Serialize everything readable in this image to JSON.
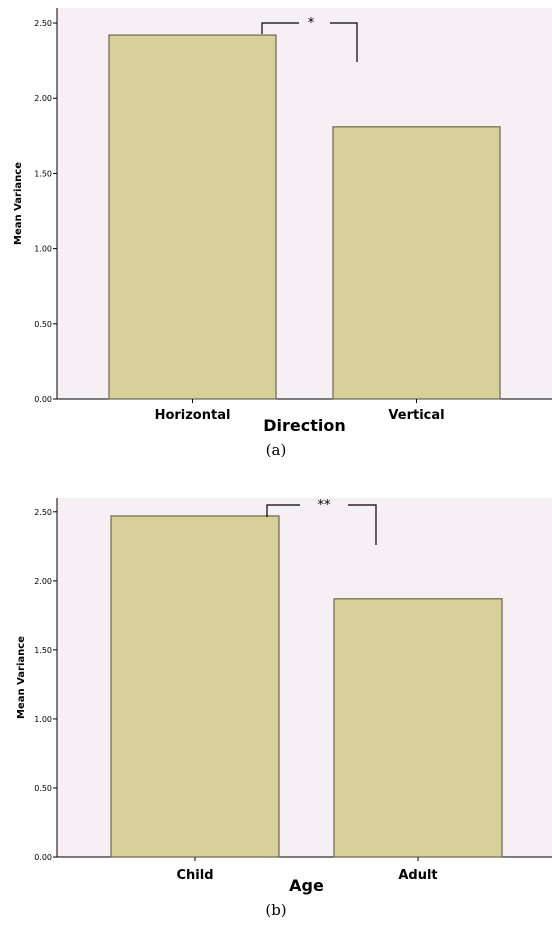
{
  "chart_data": [
    {
      "type": "bar",
      "panel_label": "(a)",
      "categories": [
        "Horizontal",
        "Vertical"
      ],
      "values": [
        2.42,
        1.81
      ],
      "xlabel": "Direction",
      "ylabel": "Mean Variance",
      "ylim": [
        0,
        2.6
      ],
      "yticks": [
        "0.00",
        "0.50",
        "1.00",
        "1.50",
        "2.00",
        "2.50"
      ],
      "significance": "*",
      "colors": {
        "plot_background": "#f6eff3",
        "bar_fill": "#d8d09b",
        "bar_stroke": "#6b6652"
      }
    },
    {
      "type": "bar",
      "panel_label": "(b)",
      "categories": [
        "Child",
        "Adult"
      ],
      "values": [
        2.47,
        1.87
      ],
      "xlabel": "Age",
      "ylabel": "Mean Variance",
      "ylim": [
        0,
        2.6
      ],
      "yticks": [
        "0.00",
        "0.50",
        "1.00",
        "1.50",
        "2.00",
        "2.50"
      ],
      "significance": "**",
      "colors": {
        "plot_background": "#f6eff3",
        "bar_fill": "#d8d09b",
        "bar_stroke": "#6b6652"
      }
    }
  ]
}
